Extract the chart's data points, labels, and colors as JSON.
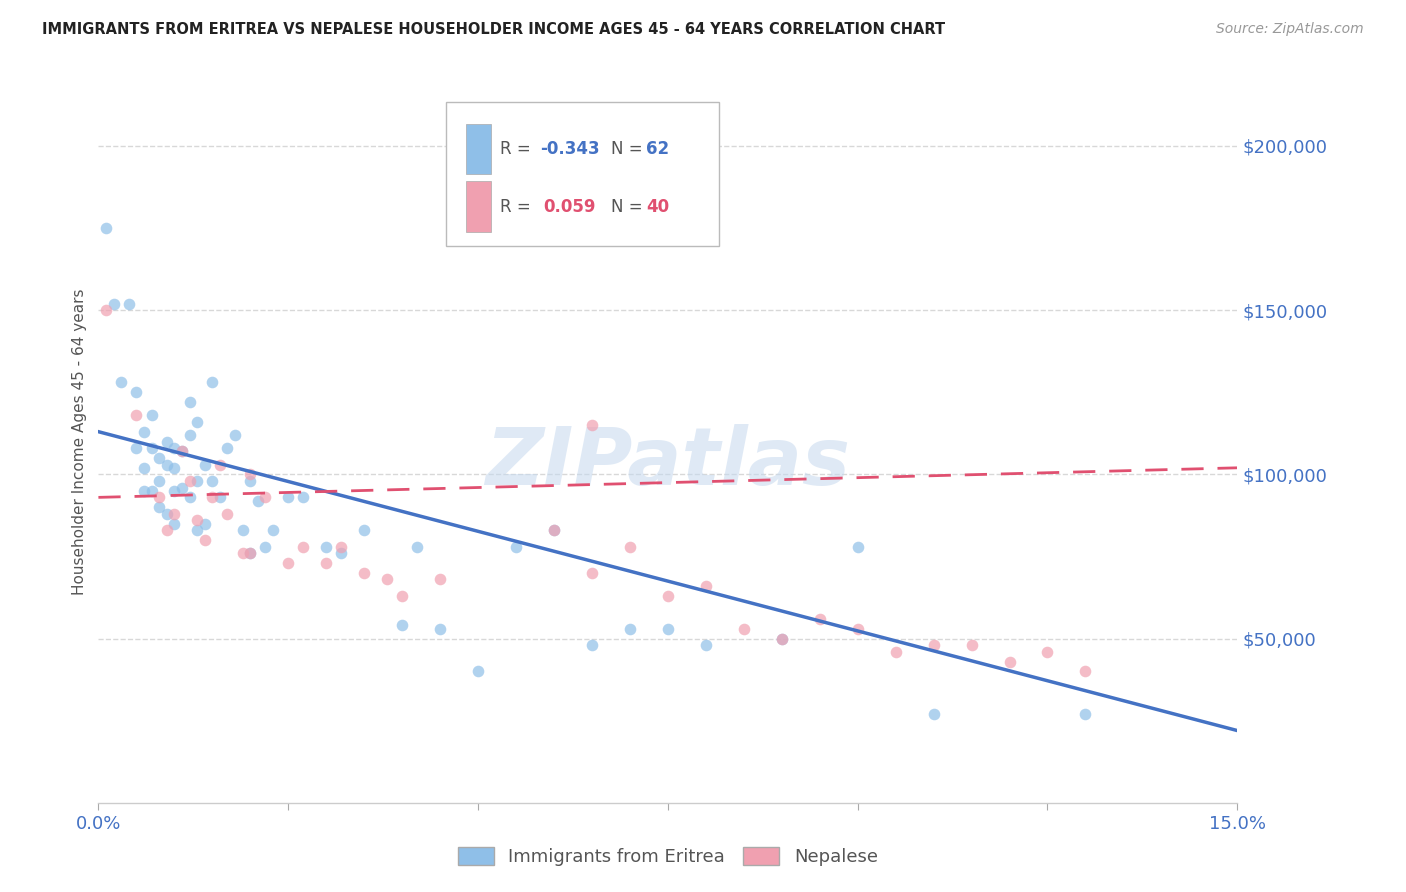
{
  "title": "IMMIGRANTS FROM ERITREA VS NEPALESE HOUSEHOLDER INCOME AGES 45 - 64 YEARS CORRELATION CHART",
  "source": "Source: ZipAtlas.com",
  "ylabel": "Householder Income Ages 45 - 64 years",
  "xlim": [
    0.0,
    0.15
  ],
  "ylim": [
    0,
    220000
  ],
  "xticks": [
    0.0,
    0.025,
    0.05,
    0.075,
    0.1,
    0.125,
    0.15
  ],
  "ytick_values": [
    200000,
    150000,
    100000,
    50000
  ],
  "background_color": "#ffffff",
  "grid_color": "#d8d8d8",
  "eritrea_color": "#8fbfe8",
  "nepalese_color": "#f0a0b0",
  "eritrea_line_color": "#4472c4",
  "nepalese_line_color": "#e05070",
  "eritrea_R": -0.343,
  "eritrea_N": 62,
  "nepalese_R": 0.059,
  "nepalese_N": 40,
  "eritrea_scatter_x": [
    0.001,
    0.002,
    0.003,
    0.004,
    0.005,
    0.005,
    0.006,
    0.006,
    0.006,
    0.007,
    0.007,
    0.007,
    0.008,
    0.008,
    0.008,
    0.009,
    0.009,
    0.009,
    0.01,
    0.01,
    0.01,
    0.01,
    0.011,
    0.011,
    0.012,
    0.012,
    0.012,
    0.013,
    0.013,
    0.013,
    0.014,
    0.014,
    0.015,
    0.015,
    0.016,
    0.017,
    0.018,
    0.019,
    0.02,
    0.02,
    0.021,
    0.022,
    0.023,
    0.025,
    0.027,
    0.03,
    0.032,
    0.035,
    0.04,
    0.042,
    0.045,
    0.05,
    0.055,
    0.06,
    0.065,
    0.07,
    0.075,
    0.08,
    0.09,
    0.1,
    0.11,
    0.13
  ],
  "eritrea_scatter_y": [
    175000,
    152000,
    128000,
    152000,
    125000,
    108000,
    113000,
    102000,
    95000,
    118000,
    108000,
    95000,
    105000,
    98000,
    90000,
    110000,
    103000,
    88000,
    108000,
    102000,
    95000,
    85000,
    107000,
    96000,
    122000,
    112000,
    93000,
    116000,
    98000,
    83000,
    103000,
    85000,
    128000,
    98000,
    93000,
    108000,
    112000,
    83000,
    98000,
    76000,
    92000,
    78000,
    83000,
    93000,
    93000,
    78000,
    76000,
    83000,
    54000,
    78000,
    53000,
    40000,
    78000,
    83000,
    48000,
    53000,
    53000,
    48000,
    50000,
    78000,
    27000,
    27000
  ],
  "nepalese_scatter_x": [
    0.001,
    0.005,
    0.008,
    0.009,
    0.01,
    0.011,
    0.012,
    0.013,
    0.014,
    0.015,
    0.016,
    0.017,
    0.019,
    0.02,
    0.022,
    0.025,
    0.027,
    0.03,
    0.032,
    0.035,
    0.038,
    0.04,
    0.045,
    0.06,
    0.065,
    0.07,
    0.075,
    0.08,
    0.085,
    0.09,
    0.095,
    0.1,
    0.105,
    0.11,
    0.115,
    0.12,
    0.125,
    0.13,
    0.065,
    0.02
  ],
  "nepalese_scatter_y": [
    150000,
    118000,
    93000,
    83000,
    88000,
    107000,
    98000,
    86000,
    80000,
    93000,
    103000,
    88000,
    76000,
    76000,
    93000,
    73000,
    78000,
    73000,
    78000,
    70000,
    68000,
    63000,
    68000,
    83000,
    70000,
    78000,
    63000,
    66000,
    53000,
    50000,
    56000,
    53000,
    46000,
    48000,
    48000,
    43000,
    46000,
    40000,
    115000,
    100000
  ],
  "eritrea_line_x": [
    0.0,
    0.15
  ],
  "eritrea_line_y": [
    113000,
    22000
  ],
  "nepalese_line_x": [
    0.0,
    0.15
  ],
  "nepalese_line_y": [
    93000,
    102000
  ],
  "watermark": "ZIPatlas",
  "title_color": "#222222",
  "tick_color": "#4472c4",
  "bottom_legend_labels": [
    "Immigrants from Eritrea",
    "Nepalese"
  ]
}
